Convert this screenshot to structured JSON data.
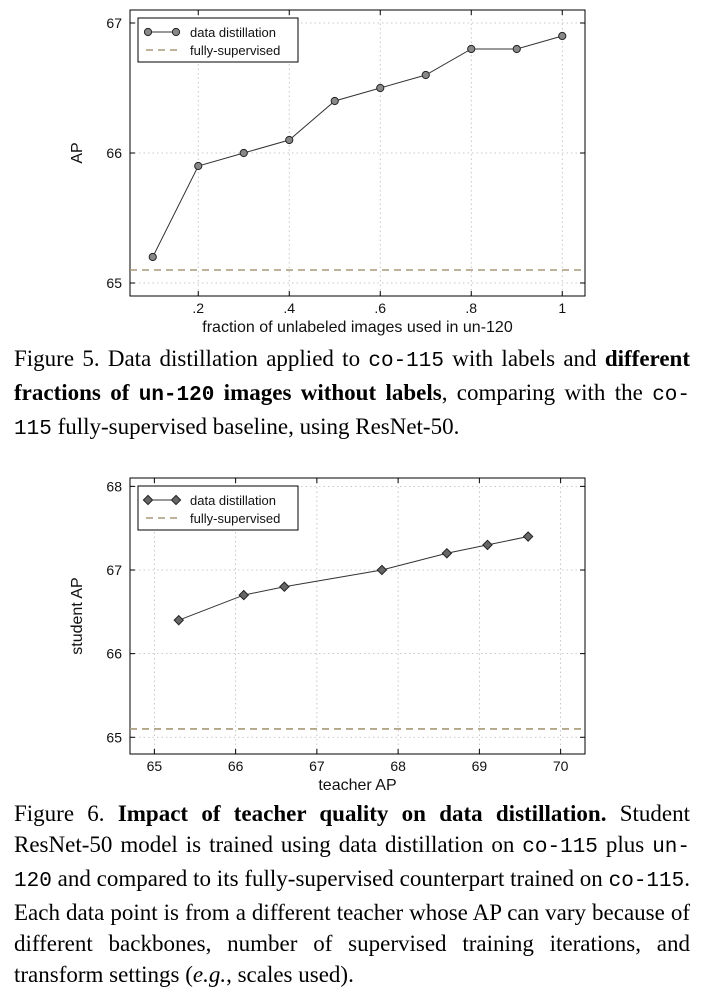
{
  "chart_data": [
    {
      "type": "line",
      "xlabel": "fraction of unlabeled images used in un-120",
      "ylabel": "AP",
      "xlim": [
        0.05,
        1.05
      ],
      "ylim": [
        64.9,
        67.1
      ],
      "x_ticks": [
        0.2,
        0.4,
        0.6,
        0.8,
        1.0
      ],
      "x_tick_labels": [
        ".2",
        ".4",
        ".6",
        ".8",
        "1"
      ],
      "y_ticks": [
        65,
        66,
        67
      ],
      "y_tick_labels": [
        "65",
        "66",
        "67"
      ],
      "grid": true,
      "legend_position": "top-left",
      "series": [
        {
          "name": "data distillation",
          "marker": "circle",
          "color": "#333333",
          "marker_fill": "#888888",
          "x": [
            0.1,
            0.2,
            0.3,
            0.4,
            0.5,
            0.6,
            0.7,
            0.8,
            0.9,
            1.0
          ],
          "y": [
            65.2,
            65.9,
            66.0,
            66.1,
            66.4,
            66.5,
            66.6,
            66.8,
            66.8,
            66.9
          ]
        },
        {
          "name": "fully-supervised",
          "style": "dashed",
          "color": "#a89a78",
          "y_constant": 65.1
        }
      ]
    },
    {
      "type": "line",
      "xlabel": "teacher AP",
      "ylabel": "student AP",
      "xlim": [
        64.7,
        70.3
      ],
      "ylim": [
        64.8,
        68.1
      ],
      "x_ticks": [
        65,
        66,
        67,
        68,
        69,
        70
      ],
      "x_tick_labels": [
        "65",
        "66",
        "67",
        "68",
        "69",
        "70"
      ],
      "y_ticks": [
        65,
        66,
        67,
        68
      ],
      "y_tick_labels": [
        "65",
        "66",
        "67",
        "68"
      ],
      "grid": true,
      "legend_position": "top-left",
      "series": [
        {
          "name": "data distillation",
          "marker": "diamond",
          "color": "#333333",
          "marker_fill": "#666666",
          "x": [
            65.3,
            66.1,
            66.6,
            67.8,
            68.6,
            69.1,
            69.6
          ],
          "y": [
            66.4,
            66.7,
            66.8,
            67.0,
            67.2,
            67.3,
            67.4
          ]
        },
        {
          "name": "fully-supervised",
          "style": "dashed",
          "color": "#a89a78",
          "y_constant": 65.1
        }
      ]
    }
  ],
  "captions": {
    "fig5": {
      "t1": "Figure 5. Data distillation applied to ",
      "m1": "co-115",
      "t2": " with labels and ",
      "b1": "dif­ferent fractions of ",
      "bm1": "un-120",
      "b2": " images without labels",
      "t3": ", comparing with the ",
      "m2": "co-115",
      "t4": " fully-supervised baseline, using ResNet-50."
    },
    "fig6": {
      "t1": "Figure 6. ",
      "b1": "Impact of teacher quality on data distillation.",
      "t2": " Student ResNet-50 model is trained using data distillation on ",
      "m1": "co-115",
      "t3": " plus ",
      "m2": "un-120",
      "t4": " and compared to its fully-supervised counterpart trained on ",
      "m3": "co-115",
      "t5": ". Each data point is from a different teacher whose AP can vary because of different backbones, number of supervised training iterations, and transform settings (",
      "i1": "e.g.",
      "t6": ", scales used)."
    }
  }
}
